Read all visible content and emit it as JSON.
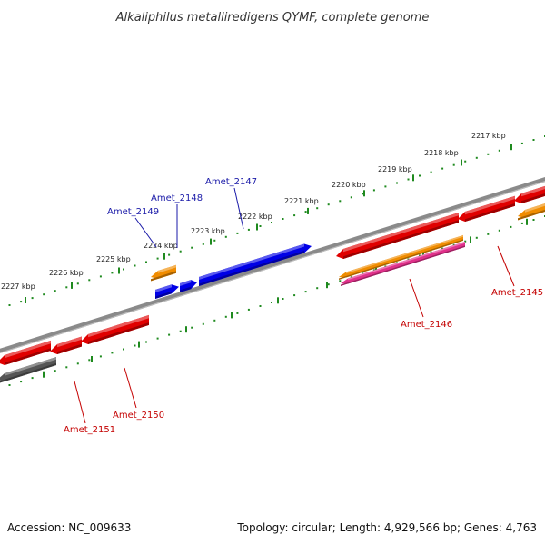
{
  "title": "Alkaliphilus metalliredigens QYMF, complete genome",
  "footer": {
    "accession": "Accession: NC_009633",
    "summary": "Topology: circular; Length: 4,929,566 bp; Genes: 4,763"
  },
  "scale_labels": [
    "2217 kbp",
    "2218 kbp",
    "2219 kbp",
    "2220 kbp",
    "2221 kbp",
    "2222 kbp",
    "2223 kbp",
    "2224 kbp",
    "2225 kbp",
    "2226 kbp",
    "2227 kbp"
  ],
  "genes": [
    {
      "label": "Amet_2145",
      "strand": "minus"
    },
    {
      "label": "Amet_2146",
      "strand": "minus"
    },
    {
      "label": "Amet_2147",
      "strand": "plus"
    },
    {
      "label": "Amet_2148",
      "strand": "plus"
    },
    {
      "label": "Amet_2149",
      "strand": "plus"
    },
    {
      "label": "Amet_2150",
      "strand": "minus"
    },
    {
      "label": "Amet_2151",
      "strand": "minus"
    }
  ],
  "colors": {
    "backbone": "#8a8a8a",
    "ticks": "#1f8a1f",
    "cds_plus": "#0000e6",
    "cds_minus": "#e00000",
    "gene_orange": "#f08c00",
    "gene_pink": "#e0308a",
    "gene_gray": "#555555",
    "label_plus": "#1a1aa8",
    "label_minus": "#c40000"
  }
}
